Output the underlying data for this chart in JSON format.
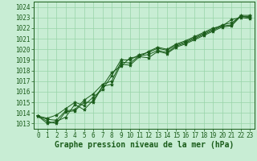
{
  "xlabel": "Graphe pression niveau de la mer (hPa)",
  "xlim": [
    -0.5,
    23.5
  ],
  "ylim": [
    1012.5,
    1024.5
  ],
  "yticks": [
    1013,
    1014,
    1015,
    1016,
    1017,
    1018,
    1019,
    1020,
    1021,
    1022,
    1023,
    1024
  ],
  "xticks": [
    0,
    1,
    2,
    3,
    4,
    5,
    6,
    7,
    8,
    9,
    10,
    11,
    12,
    13,
    14,
    15,
    16,
    17,
    18,
    19,
    20,
    21,
    22,
    23
  ],
  "background_color": "#c8edd4",
  "grid_color": "#98d4a8",
  "line_color": "#1a5c1a",
  "marker_color": "#1a5c1a",
  "series": [
    [
      1013.7,
      1013.2,
      1013.0,
      1014.1,
      1014.2,
      1015.0,
      1015.0,
      1016.5,
      1016.7,
      1018.6,
      1018.5,
      1019.3,
      1019.2,
      1019.8,
      1019.6,
      1020.2,
      1020.5,
      1020.9,
      1021.3,
      1021.7,
      1022.1,
      1022.2,
      1023.1,
      1023.0
    ],
    [
      1013.7,
      1013.5,
      1013.8,
      1014.4,
      1015.0,
      1014.7,
      1015.5,
      1016.2,
      1017.5,
      1019.0,
      1019.0,
      1019.5,
      1019.7,
      1020.1,
      1019.9,
      1020.4,
      1020.7,
      1021.1,
      1021.5,
      1021.9,
      1022.3,
      1022.5,
      1023.1,
      1023.1
    ],
    [
      1013.7,
      1013.4,
      1013.3,
      1014.2,
      1014.3,
      1015.2,
      1015.8,
      1016.7,
      1017.0,
      1018.8,
      1018.7,
      1019.4,
      1019.5,
      1019.9,
      1019.7,
      1020.3,
      1020.6,
      1021.0,
      1021.4,
      1021.8,
      1022.2,
      1022.3,
      1023.2,
      1023.2
    ],
    [
      1013.7,
      1013.0,
      1013.2,
      1013.6,
      1014.8,
      1014.3,
      1015.2,
      1016.5,
      1017.8,
      1018.4,
      1019.2,
      1019.3,
      1019.8,
      1020.2,
      1020.0,
      1020.5,
      1020.8,
      1021.2,
      1021.6,
      1022.0,
      1022.2,
      1022.8,
      1023.0,
      1022.9
    ]
  ],
  "marker": "*",
  "markersize": 3,
  "linewidth": 0.7,
  "tick_fontsize": 5.5,
  "xlabel_fontsize": 7.0,
  "spine_color": "#1a5c1a"
}
